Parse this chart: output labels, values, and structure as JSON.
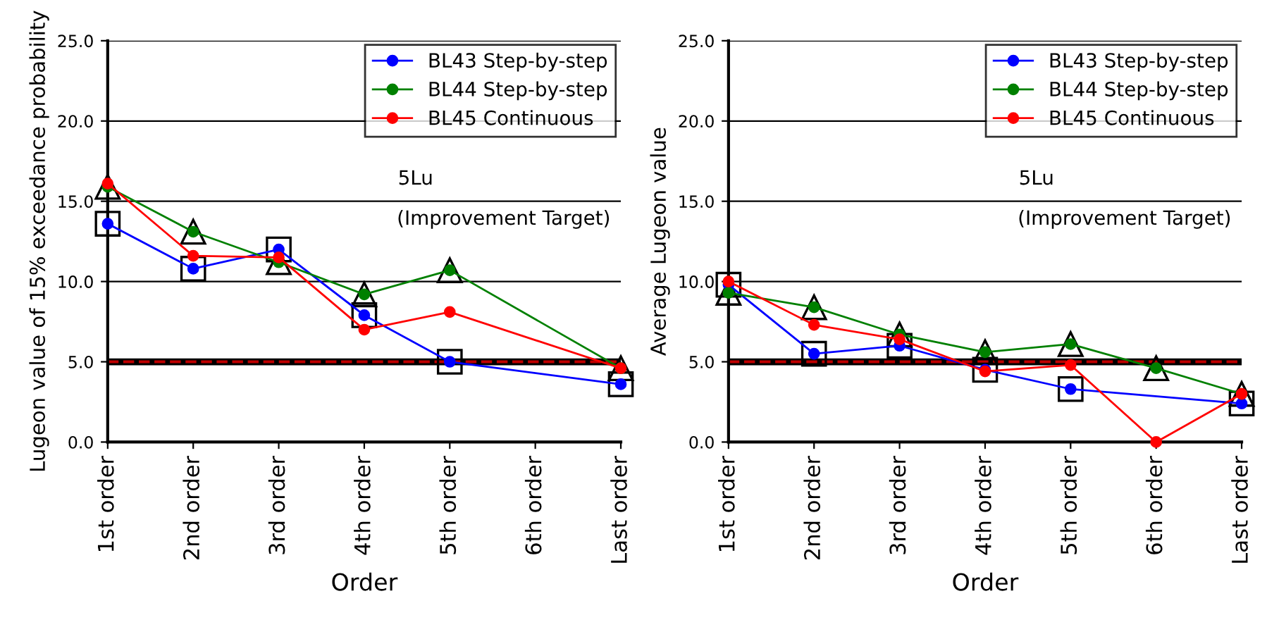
{
  "chart_data": [
    {
      "type": "line",
      "xlabel": "Order",
      "ylabel": "Lugeon value of 15% exceedance probability",
      "categories": [
        "1st order",
        "2nd order",
        "3rd order",
        "4th order",
        "5th order",
        "6th order",
        "Last order"
      ],
      "series": [
        {
          "name": "BL43 Step-by-step",
          "color": "#0000ff",
          "marker": "circle",
          "values": [
            13.6,
            10.8,
            12.0,
            7.9,
            5.0,
            null,
            3.6
          ]
        },
        {
          "name": "BL44 Step-by-step",
          "color": "#008000",
          "marker": "circle",
          "values": [
            15.9,
            13.1,
            11.2,
            9.2,
            10.7,
            null,
            4.6
          ]
        },
        {
          "name": "BL45 Continuous",
          "color": "#ff0000",
          "marker": "circle",
          "values": [
            16.1,
            11.6,
            11.5,
            7.0,
            8.1,
            null,
            4.6
          ]
        }
      ],
      "ylim": [
        0,
        25
      ],
      "yticks": [
        {
          "value": 0,
          "label": "0.0"
        },
        {
          "value": 5,
          "label": "5.0"
        },
        {
          "value": 10,
          "label": "10.0"
        },
        {
          "value": 15,
          "label": "15.0"
        },
        {
          "value": 20,
          "label": "20.0"
        },
        {
          "value": 25,
          "label": "25.0"
        }
      ],
      "grid": "y",
      "legend": "top right",
      "ref_lines": [
        {
          "axis": "y",
          "value": 5,
          "color": "#000000",
          "line_style": "solid"
        },
        {
          "axis": "y",
          "value": 5,
          "color": "#c00000",
          "line_style": "dashed"
        }
      ],
      "annotations": [
        "5Lu",
        "(Improvement Target)"
      ]
    },
    {
      "type": "line",
      "xlabel": "Order",
      "ylabel": "Average Lugeon value",
      "categories": [
        "1st order",
        "2nd order",
        "3rd order",
        "4th order",
        "5th order",
        "6th order",
        "Last order"
      ],
      "series": [
        {
          "name": "BL43 Step-by-step",
          "color": "#0000ff",
          "marker": "circle",
          "values": [
            9.8,
            5.5,
            6.0,
            4.5,
            3.3,
            null,
            2.4
          ]
        },
        {
          "name": "BL44 Step-by-step",
          "color": "#008000",
          "marker": "circle",
          "values": [
            9.3,
            8.4,
            6.7,
            5.6,
            6.1,
            4.6,
            3.0
          ]
        },
        {
          "name": "BL45 Continuous",
          "color": "#ff0000",
          "marker": "circle",
          "values": [
            10.0,
            7.3,
            6.4,
            4.4,
            4.8,
            0.0,
            3.0
          ]
        }
      ],
      "ylim": [
        0,
        25
      ],
      "yticks": [
        {
          "value": 0,
          "label": "0.0"
        },
        {
          "value": 5,
          "label": "5.0"
        },
        {
          "value": 10,
          "label": "10.0"
        },
        {
          "value": 15,
          "label": "15.0"
        },
        {
          "value": 20,
          "label": "20.0"
        },
        {
          "value": 25,
          "label": "25.0"
        }
      ],
      "grid": "y",
      "legend": "top right",
      "ref_lines": [
        {
          "axis": "y",
          "value": 5,
          "color": "#000000",
          "line_style": "solid"
        },
        {
          "axis": "y",
          "value": 5,
          "color": "#c00000",
          "line_style": "dashed"
        }
      ],
      "annotations": [
        "5Lu",
        "(Improvement Target)"
      ]
    }
  ]
}
